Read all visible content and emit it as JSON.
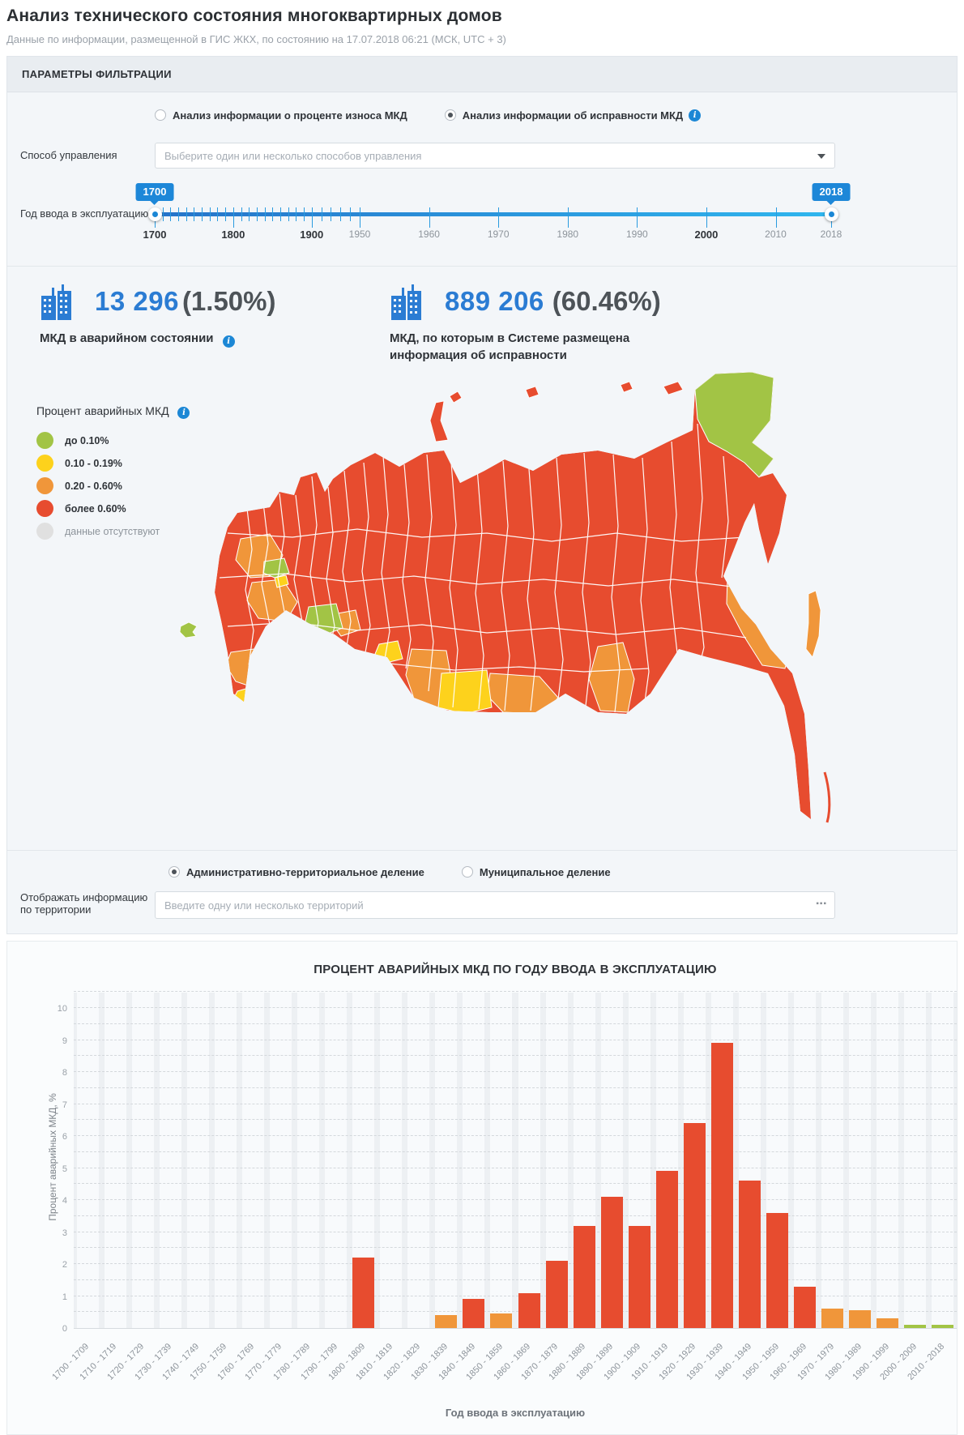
{
  "page": {
    "title": "Анализ технического состояния многоквартирных домов",
    "subtitle": "Данные по информации, размещенной в ГИС ЖКХ, по состоянию на 17.07.2018 06:21 (МСК, UTC + 3)"
  },
  "accent_color": "#1c87d5",
  "filters": {
    "header": "ПАРАМЕТРЫ ФИЛЬТРАЦИИ",
    "analysis_options": [
      {
        "label": "Анализ информации о проценте износа МКД",
        "selected": false
      },
      {
        "label": "Анализ информации об исправности МКД",
        "selected": true
      }
    ],
    "management": {
      "label": "Способ управления",
      "placeholder": "Выберите один или несколько способов управления"
    },
    "year_slider": {
      "label": "Год ввода в эксплуатацию",
      "min_value": "1700",
      "max_value": "2018",
      "scale_labels": [
        {
          "year": "1700",
          "bold": true
        },
        {
          "year": "1800",
          "bold": true
        },
        {
          "year": "1900",
          "bold": true
        },
        {
          "year": "1950",
          "bold": false
        },
        {
          "year": "1960",
          "bold": false
        },
        {
          "year": "1970",
          "bold": false
        },
        {
          "year": "1980",
          "bold": false
        },
        {
          "year": "1990",
          "bold": false
        },
        {
          "year": "2000",
          "bold": true
        },
        {
          "year": "2010",
          "bold": false
        },
        {
          "year": "2018",
          "bold": false
        }
      ]
    }
  },
  "stats": {
    "cards": [
      {
        "value": "13 296",
        "percent": "(1.50%)",
        "caption": "МКД в аварийном состоянии",
        "info": true
      },
      {
        "value": "889 206",
        "percent": "(60.46%)",
        "caption": "МКД, по которым в Системе размещена информация об исправности",
        "info": false
      }
    ]
  },
  "map": {
    "legend_title": "Процент аварийных МКД",
    "legend": [
      {
        "key": "green",
        "label": "до 0.10%",
        "color": "#a2c445"
      },
      {
        "key": "yellow",
        "label": "0.10 - 0.19%",
        "color": "#fdd21c"
      },
      {
        "key": "orange",
        "label": "0.20 - 0.60%",
        "color": "#f0963a"
      },
      {
        "key": "red",
        "label": "более 0.60%",
        "color": "#e74c2f"
      },
      {
        "key": "gray",
        "label": "данные отсутствуют",
        "color": "#e0e0e0"
      }
    ]
  },
  "territory": {
    "division_options": [
      {
        "label": "Административно-территориальное деление",
        "selected": true
      },
      {
        "label": "Муниципальное деление",
        "selected": false
      }
    ],
    "label": "Отображать информацию по территории",
    "placeholder": "Введите одну или несколько территорий"
  },
  "chart_data": {
    "type": "bar",
    "title": "ПРОЦЕНТ АВАРИЙНЫХ МКД ПО ГОДУ ВВОДА В ЭКСПЛУАТАЦИЮ",
    "xlabel": "Год ввода в эксплуатацию",
    "ylabel": "Процент аварийных МКД, %",
    "ylim": [
      0,
      10
    ],
    "y_ticks": [
      0,
      1,
      2,
      3,
      4,
      5,
      6,
      7,
      8,
      9,
      10
    ],
    "grid": true,
    "categories": [
      "1700 - 1709",
      "1710 - 1719",
      "1720 - 1729",
      "1730 - 1739",
      "1740 - 1749",
      "1750 - 1759",
      "1760 - 1769",
      "1770 - 1779",
      "1780 - 1789",
      "1790 - 1799",
      "1800 - 1809",
      "1810 - 1819",
      "1820 - 1829",
      "1830 - 1839",
      "1840 - 1849",
      "1850 - 1859",
      "1860 - 1869",
      "1870 - 1879",
      "1880 - 1889",
      "1890 - 1899",
      "1900 - 1909",
      "1910 - 1919",
      "1920 - 1929",
      "1930 - 1939",
      "1940 - 1949",
      "1950 - 1959",
      "1960 - 1969",
      "1970 - 1979",
      "1980 - 1989",
      "1990 - 1999",
      "2000 - 2009",
      "2010 - 2018"
    ],
    "values": [
      0,
      0,
      0,
      0,
      0,
      0,
      0,
      0,
      0,
      0,
      2.2,
      0,
      0,
      0.4,
      0.9,
      0.45,
      1.1,
      2.1,
      3.2,
      4.1,
      3.2,
      4.9,
      6.4,
      8.9,
      4.6,
      3.6,
      1.3,
      0.6,
      0.55,
      0.3,
      0.1,
      0.1
    ],
    "bar_colors": [
      "red",
      "red",
      "red",
      "red",
      "red",
      "red",
      "red",
      "red",
      "red",
      "red",
      "red",
      "red",
      "red",
      "orange",
      "red",
      "orange",
      "red",
      "red",
      "red",
      "red",
      "red",
      "red",
      "red",
      "red",
      "red",
      "red",
      "red",
      "orange",
      "orange",
      "orange",
      "green",
      "green"
    ]
  }
}
